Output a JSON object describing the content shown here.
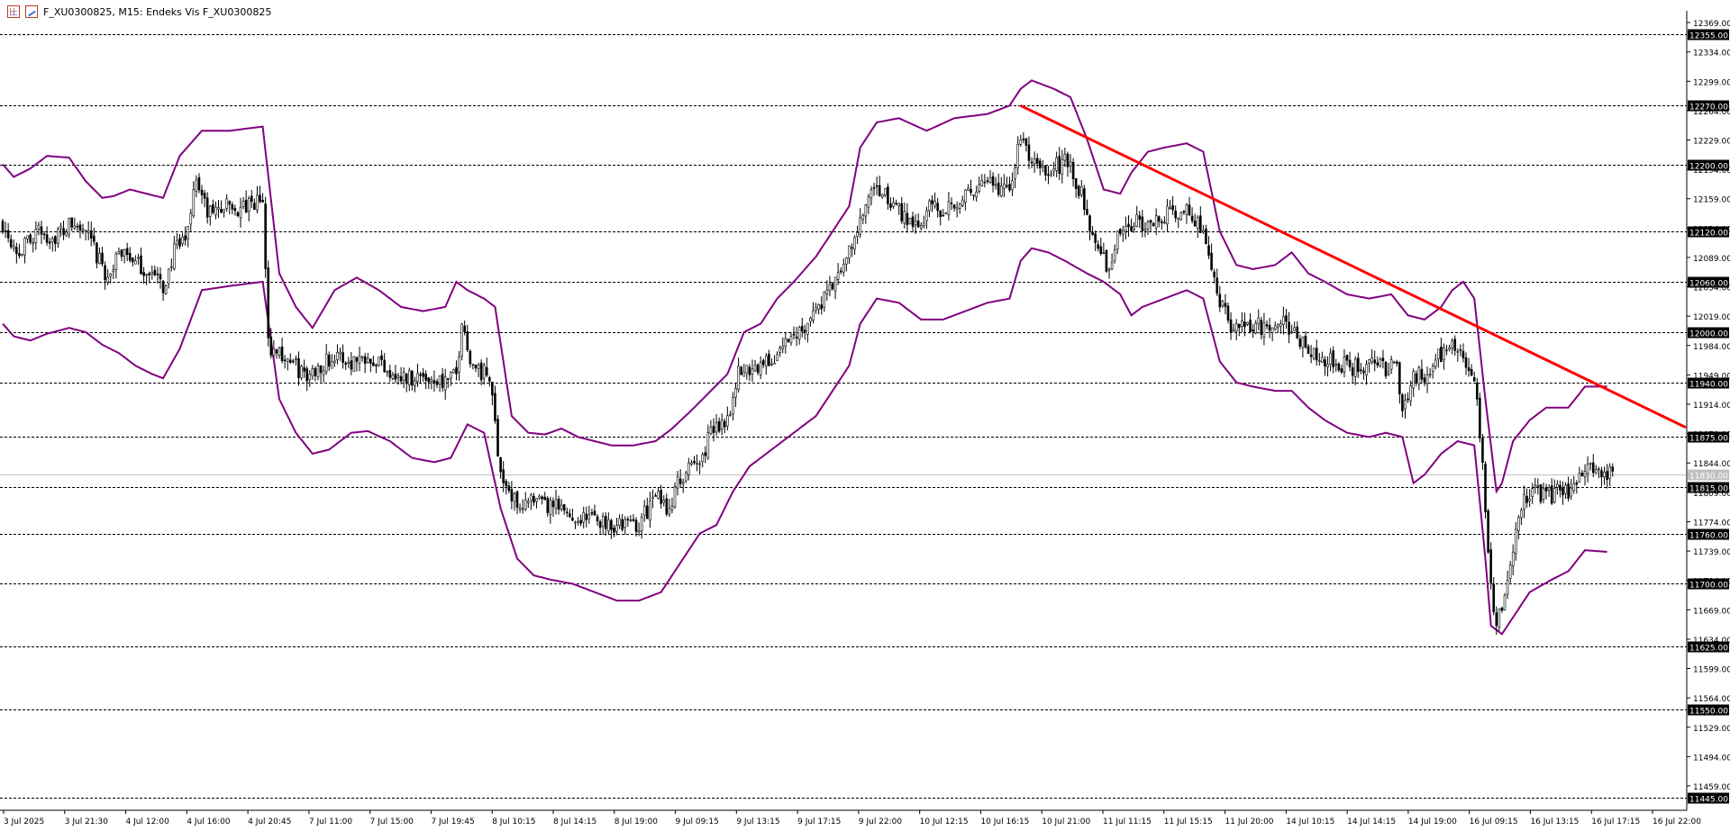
{
  "window": {
    "title": "F_XU0300825, M15:  Endeks Vis F_XU0300825"
  },
  "colors": {
    "candle": "#000000",
    "bands": "#800080",
    "trendline": "#ff0000",
    "grid": "#000000",
    "current_price_line": "#c0c0c0"
  },
  "chart_data": {
    "type": "candlestick",
    "symbol": "F_XU0300825",
    "timeframe": "M15",
    "ylim": [
      11430,
      12383
    ],
    "y_ticks": [
      "12369.00",
      "12334.00",
      "12299.00",
      "12264.00",
      "12229.00",
      "12194.00",
      "12159.00",
      "12124.00",
      "12089.00",
      "12054.00",
      "12019.00",
      "11984.00",
      "11949.00",
      "11914.00",
      "11879.00",
      "11844.00",
      "11809.00",
      "11774.00",
      "11739.00",
      "11704.00",
      "11669.00",
      "11634.00",
      "11599.00",
      "11564.00",
      "11529.00",
      "11494.00",
      "11459.00"
    ],
    "level_lines": [
      "12355.00",
      "12270.00",
      "12200.00",
      "12120.00",
      "12060.00",
      "12000.00",
      "11940.00",
      "11875.00",
      "11815.00",
      "11760.00",
      "11700.00",
      "11625.00",
      "11550.00",
      "11445.00"
    ],
    "current_price": "11830.00",
    "x_labels": [
      "3 Jul 2025",
      "3 Jul 21:30",
      "4 Jul 12:00",
      "4 Jul 16:00",
      "4 Jul 20:45",
      "7 Jul 11:00",
      "7 Jul 15:00",
      "7 Jul 19:45",
      "8 Jul 10:15",
      "8 Jul 14:15",
      "8 Jul 19:00",
      "9 Jul 09:15",
      "9 Jul 13:15",
      "9 Jul 17:15",
      "9 Jul 22:00",
      "10 Jul 12:15",
      "10 Jul 16:15",
      "10 Jul 21:00",
      "11 Jul 11:15",
      "11 Jul 15:15",
      "11 Jul 20:00",
      "14 Jul 10:15",
      "14 Jul 14:15",
      "14 Jul 19:00",
      "16 Jul 09:15",
      "16 Jul 13:15",
      "16 Jul 17:15",
      "16 Jul 22:00"
    ],
    "trendline": {
      "from": {
        "bar": 368,
        "price": 12270
      },
      "to": {
        "bar": 630,
        "price": 11852
      }
    },
    "price_path": [
      [
        0,
        12130
      ],
      [
        6,
        12095
      ],
      [
        12,
        12120
      ],
      [
        18,
        12112
      ],
      [
        25,
        12128
      ],
      [
        30,
        12118
      ],
      [
        34,
        12090
      ],
      [
        38,
        12065
      ],
      [
        44,
        12102
      ],
      [
        48,
        12080
      ],
      [
        54,
        12070
      ],
      [
        58,
        12052
      ],
      [
        62,
        12095
      ],
      [
        66,
        12110
      ],
      [
        70,
        12185
      ],
      [
        74,
        12140
      ],
      [
        80,
        12150
      ],
      [
        86,
        12145
      ],
      [
        94,
        12158
      ],
      [
        96,
        11985
      ],
      [
        104,
        11965
      ],
      [
        110,
        11945
      ],
      [
        116,
        11965
      ],
      [
        120,
        11970
      ],
      [
        126,
        11965
      ],
      [
        132,
        11975
      ],
      [
        138,
        11960
      ],
      [
        144,
        11945
      ],
      [
        150,
        11948
      ],
      [
        156,
        11945
      ],
      [
        160,
        11940
      ],
      [
        164,
        11948
      ],
      [
        166,
        12010
      ],
      [
        170,
        11960
      ],
      [
        176,
        11945
      ],
      [
        180,
        11835
      ],
      [
        184,
        11800
      ],
      [
        192,
        11795
      ],
      [
        200,
        11790
      ],
      [
        206,
        11780
      ],
      [
        214,
        11778
      ],
      [
        222,
        11770
      ],
      [
        230,
        11772
      ],
      [
        236,
        11805
      ],
      [
        240,
        11790
      ],
      [
        246,
        11830
      ],
      [
        252,
        11845
      ],
      [
        256,
        11880
      ],
      [
        262,
        11900
      ],
      [
        266,
        11950
      ],
      [
        272,
        11960
      ],
      [
        278,
        11965
      ],
      [
        284,
        11990
      ],
      [
        290,
        12010
      ],
      [
        296,
        12035
      ],
      [
        302,
        12065
      ],
      [
        308,
        12110
      ],
      [
        312,
        12150
      ],
      [
        316,
        12170
      ],
      [
        324,
        12145
      ],
      [
        330,
        12130
      ],
      [
        336,
        12150
      ],
      [
        340,
        12148
      ],
      [
        348,
        12162
      ],
      [
        356,
        12175
      ],
      [
        364,
        12168
      ],
      [
        368,
        12235
      ],
      [
        372,
        12200
      ],
      [
        378,
        12190
      ],
      [
        384,
        12205
      ],
      [
        388,
        12180
      ],
      [
        392,
        12145
      ],
      [
        396,
        12090
      ],
      [
        400,
        12080
      ],
      [
        404,
        12120
      ],
      [
        410,
        12130
      ],
      [
        416,
        12135
      ],
      [
        422,
        12140
      ],
      [
        428,
        12145
      ],
      [
        432,
        12130
      ],
      [
        436,
        12095
      ],
      [
        440,
        12040
      ],
      [
        444,
        12000
      ],
      [
        450,
        12010
      ],
      [
        456,
        12005
      ],
      [
        462,
        12020
      ],
      [
        466,
        12000
      ],
      [
        470,
        11985
      ],
      [
        476,
        11975
      ],
      [
        480,
        11965
      ],
      [
        488,
        11958
      ],
      [
        496,
        11960
      ],
      [
        504,
        11955
      ],
      [
        506,
        11905
      ],
      [
        510,
        11945
      ],
      [
        516,
        11955
      ],
      [
        520,
        11975
      ],
      [
        524,
        11985
      ],
      [
        528,
        11965
      ],
      [
        532,
        11945
      ],
      [
        534,
        11880
      ],
      [
        536,
        11790
      ],
      [
        538,
        11700
      ],
      [
        540,
        11650
      ],
      [
        544,
        11700
      ],
      [
        548,
        11785
      ],
      [
        552,
        11810
      ],
      [
        558,
        11805
      ],
      [
        566,
        11812
      ],
      [
        574,
        11835
      ],
      [
        578,
        11838
      ],
      [
        582,
        11830
      ]
    ],
    "upper_band": [
      [
        0,
        12200
      ],
      [
        4,
        12185
      ],
      [
        10,
        12195
      ],
      [
        16,
        12210
      ],
      [
        24,
        12208
      ],
      [
        30,
        12180
      ],
      [
        36,
        12160
      ],
      [
        40,
        12162
      ],
      [
        46,
        12170
      ],
      [
        52,
        12165
      ],
      [
        58,
        12160
      ],
      [
        64,
        12210
      ],
      [
        72,
        12240
      ],
      [
        82,
        12240
      ],
      [
        94,
        12245
      ],
      [
        100,
        12070
      ],
      [
        106,
        12030
      ],
      [
        112,
        12005
      ],
      [
        120,
        12050
      ],
      [
        128,
        12065
      ],
      [
        136,
        12050
      ],
      [
        144,
        12030
      ],
      [
        152,
        12025
      ],
      [
        160,
        12030
      ],
      [
        164,
        12060
      ],
      [
        168,
        12050
      ],
      [
        174,
        12040
      ],
      [
        178,
        12030
      ],
      [
        184,
        11900
      ],
      [
        190,
        11880
      ],
      [
        196,
        11878
      ],
      [
        202,
        11885
      ],
      [
        208,
        11875
      ],
      [
        214,
        11870
      ],
      [
        220,
        11865
      ],
      [
        228,
        11865
      ],
      [
        236,
        11870
      ],
      [
        242,
        11885
      ],
      [
        250,
        11910
      ],
      [
        256,
        11930
      ],
      [
        262,
        11950
      ],
      [
        268,
        12000
      ],
      [
        274,
        12010
      ],
      [
        280,
        12040
      ],
      [
        286,
        12060
      ],
      [
        294,
        12090
      ],
      [
        300,
        12120
      ],
      [
        306,
        12150
      ],
      [
        310,
        12220
      ],
      [
        316,
        12250
      ],
      [
        324,
        12255
      ],
      [
        334,
        12240
      ],
      [
        344,
        12255
      ],
      [
        356,
        12260
      ],
      [
        364,
        12270
      ],
      [
        368,
        12290
      ],
      [
        372,
        12300
      ],
      [
        380,
        12290
      ],
      [
        386,
        12280
      ],
      [
        392,
        12230
      ],
      [
        398,
        12170
      ],
      [
        404,
        12165
      ],
      [
        408,
        12190
      ],
      [
        414,
        12215
      ],
      [
        420,
        12220
      ],
      [
        428,
        12225
      ],
      [
        434,
        12215
      ],
      [
        440,
        12120
      ],
      [
        446,
        12080
      ],
      [
        452,
        12075
      ],
      [
        460,
        12080
      ],
      [
        466,
        12095
      ],
      [
        472,
        12070
      ],
      [
        478,
        12060
      ],
      [
        486,
        12045
      ],
      [
        494,
        12040
      ],
      [
        502,
        12045
      ],
      [
        508,
        12020
      ],
      [
        514,
        12015
      ],
      [
        520,
        12030
      ],
      [
        524,
        12050
      ],
      [
        528,
        12060
      ],
      [
        532,
        12040
      ],
      [
        536,
        11920
      ],
      [
        540,
        11810
      ],
      [
        542,
        11820
      ],
      [
        546,
        11870
      ],
      [
        552,
        11895
      ],
      [
        558,
        11910
      ],
      [
        566,
        11910
      ],
      [
        572,
        11935
      ],
      [
        580,
        11935
      ]
    ],
    "lower_band": [
      [
        0,
        12010
      ],
      [
        4,
        11995
      ],
      [
        10,
        11990
      ],
      [
        16,
        11998
      ],
      [
        24,
        12005
      ],
      [
        30,
        12000
      ],
      [
        36,
        11985
      ],
      [
        42,
        11975
      ],
      [
        48,
        11960
      ],
      [
        54,
        11950
      ],
      [
        58,
        11945
      ],
      [
        64,
        11980
      ],
      [
        72,
        12050
      ],
      [
        82,
        12055
      ],
      [
        94,
        12060
      ],
      [
        100,
        11920
      ],
      [
        106,
        11880
      ],
      [
        112,
        11855
      ],
      [
        118,
        11860
      ],
      [
        126,
        11880
      ],
      [
        132,
        11882
      ],
      [
        140,
        11870
      ],
      [
        148,
        11850
      ],
      [
        156,
        11845
      ],
      [
        162,
        11850
      ],
      [
        168,
        11890
      ],
      [
        174,
        11880
      ],
      [
        180,
        11790
      ],
      [
        186,
        11730
      ],
      [
        192,
        11710
      ],
      [
        198,
        11705
      ],
      [
        206,
        11700
      ],
      [
        214,
        11690
      ],
      [
        222,
        11680
      ],
      [
        230,
        11680
      ],
      [
        238,
        11690
      ],
      [
        244,
        11720
      ],
      [
        252,
        11760
      ],
      [
        258,
        11770
      ],
      [
        264,
        11810
      ],
      [
        270,
        11840
      ],
      [
        278,
        11860
      ],
      [
        286,
        11880
      ],
      [
        294,
        11900
      ],
      [
        300,
        11930
      ],
      [
        306,
        11960
      ],
      [
        310,
        12010
      ],
      [
        316,
        12040
      ],
      [
        324,
        12035
      ],
      [
        332,
        12015
      ],
      [
        340,
        12015
      ],
      [
        348,
        12025
      ],
      [
        356,
        12035
      ],
      [
        364,
        12040
      ],
      [
        368,
        12085
      ],
      [
        372,
        12100
      ],
      [
        378,
        12095
      ],
      [
        384,
        12085
      ],
      [
        392,
        12070
      ],
      [
        398,
        12060
      ],
      [
        404,
        12045
      ],
      [
        408,
        12020
      ],
      [
        412,
        12030
      ],
      [
        420,
        12040
      ],
      [
        428,
        12050
      ],
      [
        434,
        12040
      ],
      [
        440,
        11965
      ],
      [
        446,
        11940
      ],
      [
        452,
        11935
      ],
      [
        460,
        11930
      ],
      [
        466,
        11930
      ],
      [
        472,
        11910
      ],
      [
        478,
        11895
      ],
      [
        486,
        11880
      ],
      [
        494,
        11875
      ],
      [
        500,
        11880
      ],
      [
        506,
        11875
      ],
      [
        510,
        11820
      ],
      [
        514,
        11830
      ],
      [
        520,
        11855
      ],
      [
        526,
        11870
      ],
      [
        532,
        11865
      ],
      [
        536,
        11730
      ],
      [
        538,
        11650
      ],
      [
        542,
        11640
      ],
      [
        546,
        11660
      ],
      [
        552,
        11690
      ],
      [
        560,
        11705
      ],
      [
        566,
        11715
      ],
      [
        572,
        11740
      ],
      [
        580,
        11738
      ]
    ],
    "grid": false,
    "legend": "none"
  }
}
